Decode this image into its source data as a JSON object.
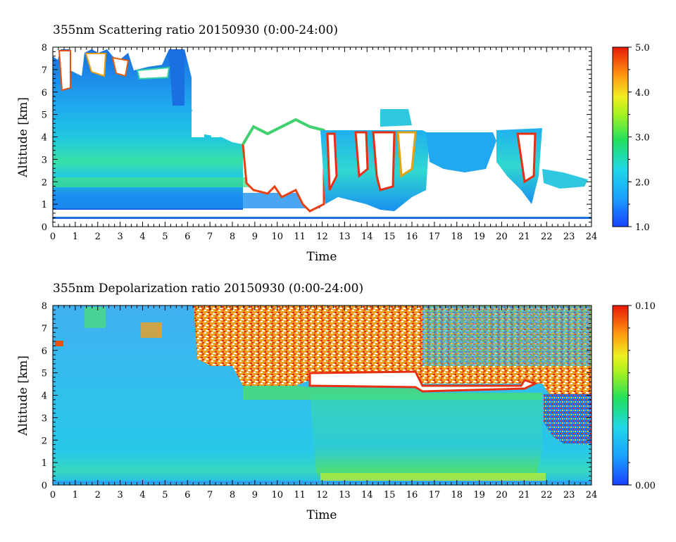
{
  "chart_data": [
    {
      "type": "heatmap",
      "title": "355nm Scattering ratio  20150930 (0:00-24:00)",
      "xlabel": "Time",
      "ylabel": "Altitude [km]",
      "xlim": [
        0,
        24
      ],
      "ylim": [
        0,
        8
      ],
      "xticks": [
        "0",
        "1",
        "2",
        "3",
        "4",
        "5",
        "6",
        "7",
        "8",
        "9",
        "10",
        "11",
        "12",
        "13",
        "14",
        "15",
        "16",
        "17",
        "18",
        "19",
        "20",
        "21",
        "22",
        "23",
        "24"
      ],
      "yticks": [
        "0",
        "1",
        "2",
        "3",
        "4",
        "5",
        "6",
        "7",
        "8"
      ],
      "colorbar": {
        "min": 1.0,
        "max": 5.0,
        "ticks": [
          "1.0",
          "2.0",
          "3.0",
          "4.0",
          "5.0"
        ]
      },
      "grid": false
    },
    {
      "type": "heatmap",
      "title": "355nm Depolarization ratio  20150930 (0:00-24:00)",
      "xlabel": "Time",
      "ylabel": "Altitude [km]",
      "xlim": [
        0,
        24
      ],
      "ylim": [
        0,
        8
      ],
      "xticks": [
        "0",
        "1",
        "2",
        "3",
        "4",
        "5",
        "6",
        "7",
        "8",
        "9",
        "10",
        "11",
        "12",
        "13",
        "14",
        "15",
        "16",
        "17",
        "18",
        "19",
        "20",
        "21",
        "22",
        "23",
        "24"
      ],
      "yticks": [
        "0",
        "1",
        "2",
        "3",
        "4",
        "5",
        "6",
        "7",
        "8"
      ],
      "colorbar": {
        "min": 0.0,
        "max": 0.1,
        "ticks": [
          "0.00",
          "0.10"
        ]
      },
      "grid": false
    }
  ]
}
